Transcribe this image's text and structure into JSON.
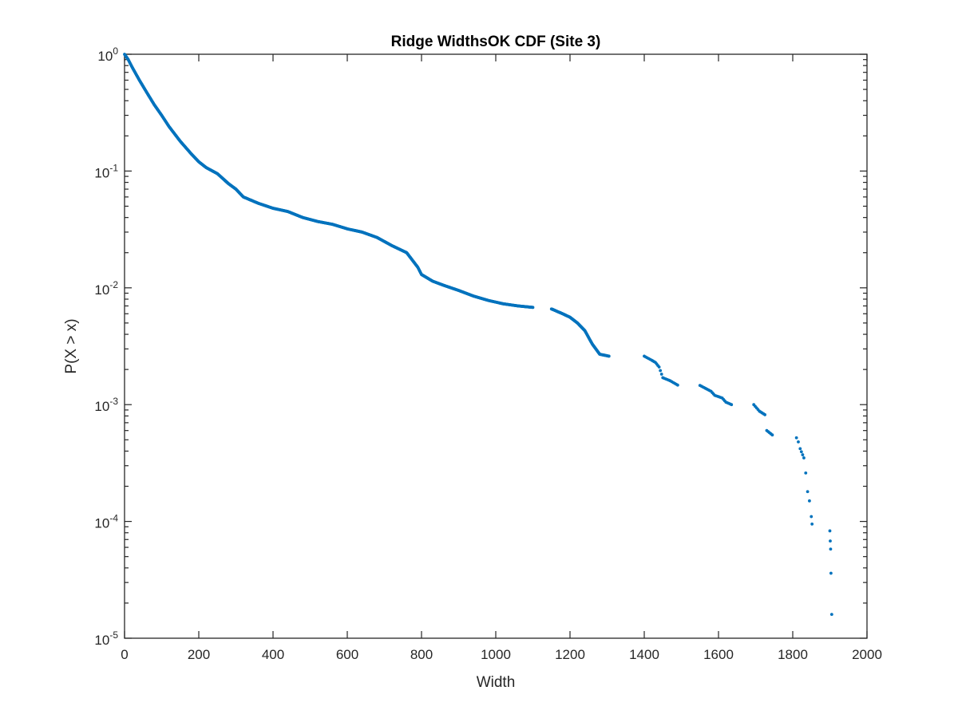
{
  "chart_data": {
    "type": "scatter",
    "title": "Ridge WidthsOK CDF (Site 3)",
    "xlabel": "Width",
    "ylabel": "P(X > x)",
    "xlim": [
      0,
      2000
    ],
    "ylim": [
      1e-05,
      1
    ],
    "yscale": "log",
    "grid": false,
    "legend": "none",
    "marker_color": "#0072BD",
    "x_ticks": [
      "0",
      "200",
      "400",
      "600",
      "800",
      "1000",
      "1200",
      "1400",
      "1600",
      "1800",
      "2000"
    ],
    "y_ticks": [
      {
        "base": "10",
        "exp": "0",
        "value": 1
      },
      {
        "base": "10",
        "exp": "-1",
        "value": 0.1
      },
      {
        "base": "10",
        "exp": "-2",
        "value": 0.01
      },
      {
        "base": "10",
        "exp": "-3",
        "value": 0.001
      },
      {
        "base": "10",
        "exp": "-4",
        "value": 0.0001
      },
      {
        "base": "10",
        "exp": "-5",
        "value": 1e-05
      }
    ],
    "series": [
      {
        "points": [
          [
            0,
            1.0
          ],
          [
            10,
            0.9
          ],
          [
            20,
            0.78
          ],
          [
            40,
            0.6
          ],
          [
            60,
            0.47
          ],
          [
            80,
            0.37
          ],
          [
            100,
            0.3
          ],
          [
            120,
            0.24
          ],
          [
            150,
            0.18
          ],
          [
            180,
            0.14
          ],
          [
            200,
            0.12
          ],
          [
            220,
            0.107
          ],
          [
            250,
            0.095
          ],
          [
            280,
            0.078
          ],
          [
            300,
            0.07
          ],
          [
            320,
            0.06
          ],
          [
            360,
            0.053
          ],
          [
            400,
            0.048
          ],
          [
            440,
            0.045
          ],
          [
            480,
            0.04
          ],
          [
            520,
            0.037
          ],
          [
            560,
            0.035
          ],
          [
            600,
            0.032
          ],
          [
            640,
            0.03
          ],
          [
            680,
            0.027
          ],
          [
            720,
            0.023
          ],
          [
            760,
            0.02
          ],
          [
            790,
            0.015
          ],
          [
            800,
            0.013
          ],
          [
            830,
            0.0114
          ],
          [
            860,
            0.0105
          ],
          [
            900,
            0.0095
          ],
          [
            940,
            0.0085
          ],
          [
            980,
            0.0078
          ],
          [
            1020,
            0.0073
          ],
          [
            1060,
            0.007
          ],
          [
            1100,
            0.0068
          ],
          [
            1150,
            0.0066
          ],
          [
            1180,
            0.006
          ],
          [
            1200,
            0.0056
          ],
          [
            1220,
            0.005
          ],
          [
            1240,
            0.0043
          ],
          [
            1260,
            0.0033
          ],
          [
            1280,
            0.0027
          ],
          [
            1305,
            0.0026
          ],
          [
            1400,
            0.0026
          ],
          [
            1420,
            0.0024
          ],
          [
            1430,
            0.0023
          ],
          [
            1440,
            0.0021
          ],
          [
            1450,
            0.0017
          ],
          [
            1470,
            0.0016
          ],
          [
            1490,
            0.00147
          ],
          [
            1550,
            0.00146
          ],
          [
            1580,
            0.0013
          ],
          [
            1590,
            0.0012
          ],
          [
            1610,
            0.00114
          ],
          [
            1620,
            0.00105
          ],
          [
            1635,
            0.001
          ],
          [
            1695,
            0.001
          ],
          [
            1710,
            0.00088
          ],
          [
            1725,
            0.00082
          ],
          [
            1730,
            0.0006
          ],
          [
            1745,
            0.00055
          ],
          [
            1810,
            0.00052
          ],
          [
            1815,
            0.00048
          ],
          [
            1820,
            0.00042
          ],
          [
            1830,
            0.00035
          ],
          [
            1835,
            0.00026
          ],
          [
            1840,
            0.00018
          ],
          [
            1845,
            0.00015
          ],
          [
            1850,
            0.00011
          ],
          [
            1852,
            9.5e-05
          ],
          [
            1900,
            8.3e-05
          ],
          [
            1901,
            6.8e-05
          ],
          [
            1902,
            5.8e-05
          ],
          [
            1903,
            3.6e-05
          ],
          [
            1905,
            1.6e-05
          ]
        ]
      }
    ]
  }
}
